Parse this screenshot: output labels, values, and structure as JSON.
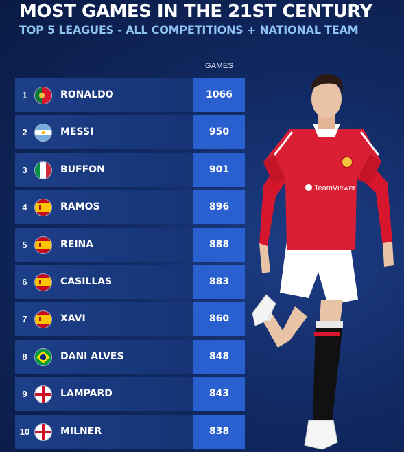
{
  "chart_data": {
    "type": "table",
    "title": "MOST GAMES IN THE 21ST CENTURY",
    "subtitle": "TOP 5 LEAGUES - ALL COMPETITIONS + NATIONAL TEAM",
    "value_header": "GAMES",
    "rows": [
      {
        "rank": "1",
        "name": "RONALDO",
        "country": "portugal",
        "value": 1066
      },
      {
        "rank": "2",
        "name": "MESSI",
        "country": "argentina",
        "value": 950
      },
      {
        "rank": "3",
        "name": "BUFFON",
        "country": "italy",
        "value": 901
      },
      {
        "rank": "4",
        "name": "RAMOS",
        "country": "spain",
        "value": 896
      },
      {
        "rank": "5",
        "name": "REINA",
        "country": "spain",
        "value": 888
      },
      {
        "rank": "6",
        "name": "CASILLAS",
        "country": "spain",
        "value": 883
      },
      {
        "rank": "7",
        "name": "XAVI",
        "country": "spain",
        "value": 860
      },
      {
        "rank": "8",
        "name": "DANI ALVES",
        "country": "brazil",
        "value": 848
      },
      {
        "rank": "9",
        "name": "LAMPARD",
        "country": "england",
        "value": 843
      },
      {
        "rank": "10",
        "name": "MILNER",
        "country": "england",
        "value": 838
      }
    ]
  },
  "player_shirt": {
    "sponsor": "TeamViewer"
  },
  "colors": {
    "background": "#112a63",
    "row": "#1e418c",
    "value_box": "#2a5fd0",
    "subtitle": "#8fc3f2"
  }
}
